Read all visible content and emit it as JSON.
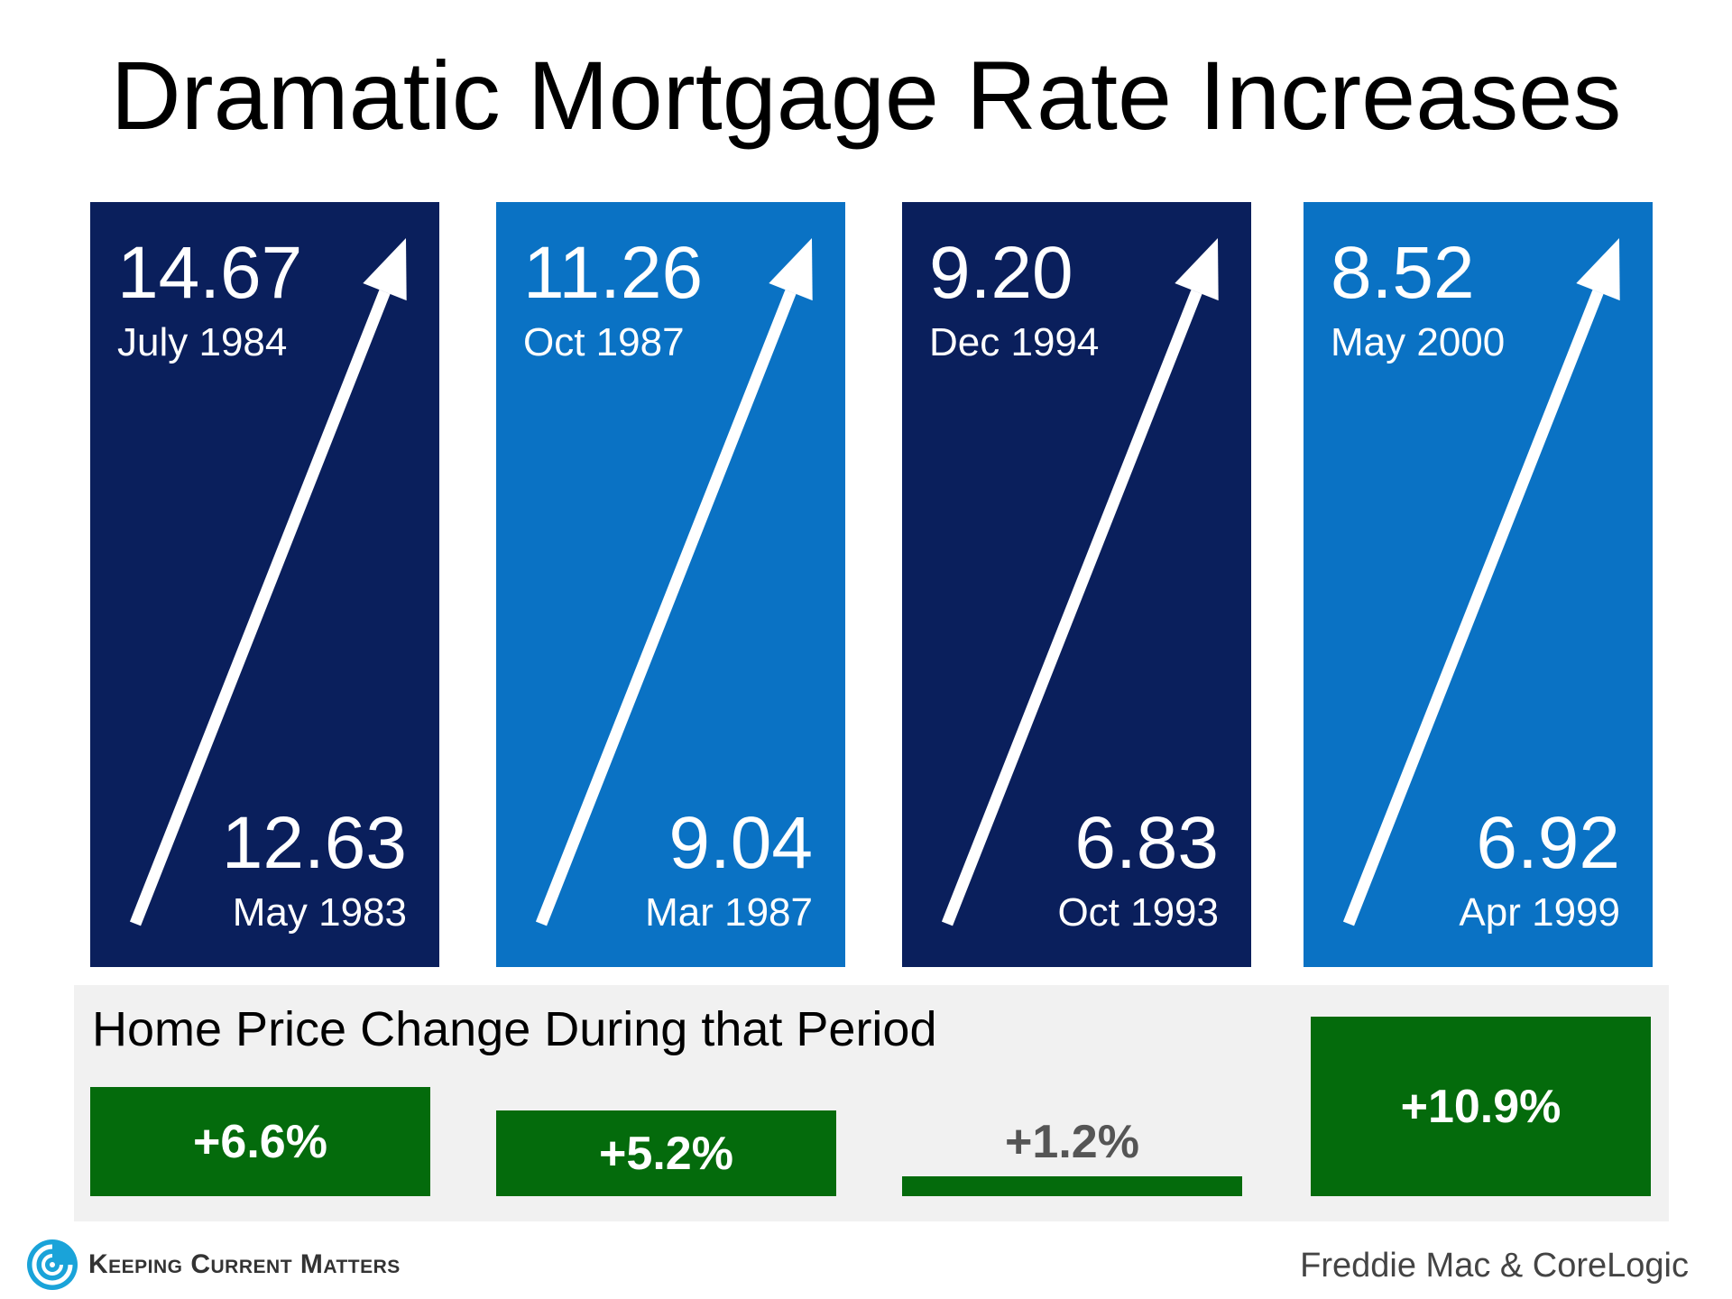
{
  "title": "Dramatic Mortgage Rate Increases",
  "colors": {
    "dark_blue": "#0a1f5c",
    "light_blue": "#0a72c4",
    "green": "#046b0c",
    "panel_bg": "#f1f1f1"
  },
  "chart_data": {
    "type": "bar",
    "title": "Dramatic Mortgage Rate Increases",
    "periods": [
      {
        "start_rate": "12.63",
        "start_date": "May 1983",
        "end_rate": "14.67",
        "end_date": "July 1984",
        "color": "#0a1f5c"
      },
      {
        "start_rate": "9.04",
        "start_date": "Mar 1987",
        "end_rate": "11.26",
        "end_date": "Oct 1987",
        "color": "#0a72c4"
      },
      {
        "start_rate": "6.83",
        "start_date": "Oct 1993",
        "end_rate": "9.20",
        "end_date": "Dec 1994",
        "color": "#0a1f5c"
      },
      {
        "start_rate": "6.92",
        "start_date": "Apr 1999",
        "end_rate": "8.52",
        "end_date": "May 2000",
        "color": "#0a72c4"
      }
    ],
    "home_price": {
      "title": "Home Price Change During that Period",
      "categories": [
        "May 1983 – July 1984",
        "Mar 1987 – Oct 1987",
        "Oct 1993 – Dec 1994",
        "Apr 1999 – May 2000"
      ],
      "values": [
        6.6,
        5.2,
        1.2,
        10.9
      ],
      "labels": [
        "+6.6%",
        "+5.2%",
        "+1.2%",
        "+10.9%"
      ]
    }
  },
  "footer": {
    "brand": "Keeping Current Matters",
    "source": "Freddie Mac & CoreLogic"
  }
}
